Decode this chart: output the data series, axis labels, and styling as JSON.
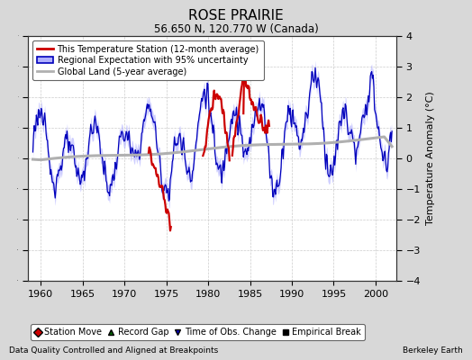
{
  "title": "ROSE PRAIRIE",
  "subtitle": "56.650 N, 120.770 W (Canada)",
  "ylabel": "Temperature Anomaly (°C)",
  "xlabel_left": "Data Quality Controlled and Aligned at Breakpoints",
  "xlabel_right": "Berkeley Earth",
  "xmin": 1958.5,
  "xmax": 2002.5,
  "ymin": -4,
  "ymax": 4,
  "yticks": [
    -4,
    -3,
    -2,
    -1,
    0,
    1,
    2,
    3,
    4
  ],
  "xticks": [
    1960,
    1965,
    1970,
    1975,
    1980,
    1985,
    1990,
    1995,
    2000
  ],
  "background_color": "#d8d8d8",
  "plot_bg_color": "#ffffff",
  "blue_line_color": "#0000bb",
  "blue_fill_color": "#b0b0ff",
  "red_line_color": "#cc0000",
  "gray_line_color": "#b0b0b0",
  "legend_items": [
    {
      "label": "This Temperature Station (12-month average)"
    },
    {
      "label": "Regional Expectation with 95% uncertainty"
    },
    {
      "label": "Global Land (5-year average)"
    }
  ],
  "bottom_legend": [
    {
      "label": "Station Move",
      "color": "#cc0000",
      "marker": "D"
    },
    {
      "label": "Record Gap",
      "color": "#006600",
      "marker": "^"
    },
    {
      "label": "Time of Obs. Change",
      "color": "#0000bb",
      "marker": "v"
    },
    {
      "label": "Empirical Break",
      "color": "#000000",
      "marker": "s"
    }
  ]
}
